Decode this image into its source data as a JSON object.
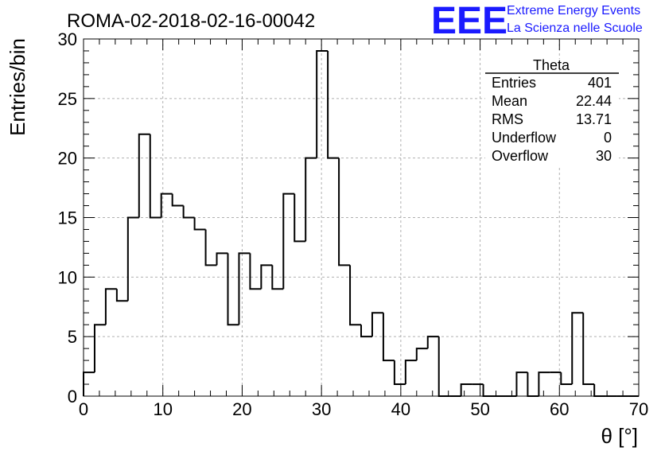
{
  "header": {
    "run_title": "ROMA-02-2018-02-16-00042",
    "logo": "EEE",
    "logo_line1": "Extreme Energy Events",
    "logo_line2": "La Scienza nelle Scuole"
  },
  "stats_box": {
    "title": "Theta",
    "rows": [
      {
        "label": "Entries",
        "value": "401"
      },
      {
        "label": "Mean",
        "value": "22.44"
      },
      {
        "label": "RMS",
        "value": "13.71"
      },
      {
        "label": "Underflow",
        "value": "0"
      },
      {
        "label": "Overflow",
        "value": "30"
      }
    ]
  },
  "chart_data": {
    "type": "bar",
    "title": "ROMA-02-2018-02-16-00042",
    "xlabel": "θ [°]",
    "ylabel": "Entries/bin",
    "xlim": [
      0,
      70
    ],
    "ylim": [
      0,
      30
    ],
    "bin_width": 1.4,
    "bin_edges_start": 0,
    "values": [
      2,
      6,
      9,
      8,
      15,
      22,
      15,
      17,
      16,
      15,
      14,
      11,
      12,
      6,
      12,
      9,
      11,
      9,
      17,
      13,
      20,
      29,
      20,
      11,
      6,
      5,
      7,
      3,
      1,
      3,
      4,
      5,
      0,
      0,
      1,
      1,
      0,
      0,
      0,
      2,
      0,
      2,
      2,
      1,
      7,
      1,
      0,
      0,
      0,
      0
    ],
    "x_ticks": [
      0,
      10,
      20,
      30,
      40,
      50,
      60,
      70
    ],
    "y_ticks": [
      0,
      5,
      10,
      15,
      20,
      25,
      30
    ],
    "grid": true,
    "legend": "top-right"
  }
}
